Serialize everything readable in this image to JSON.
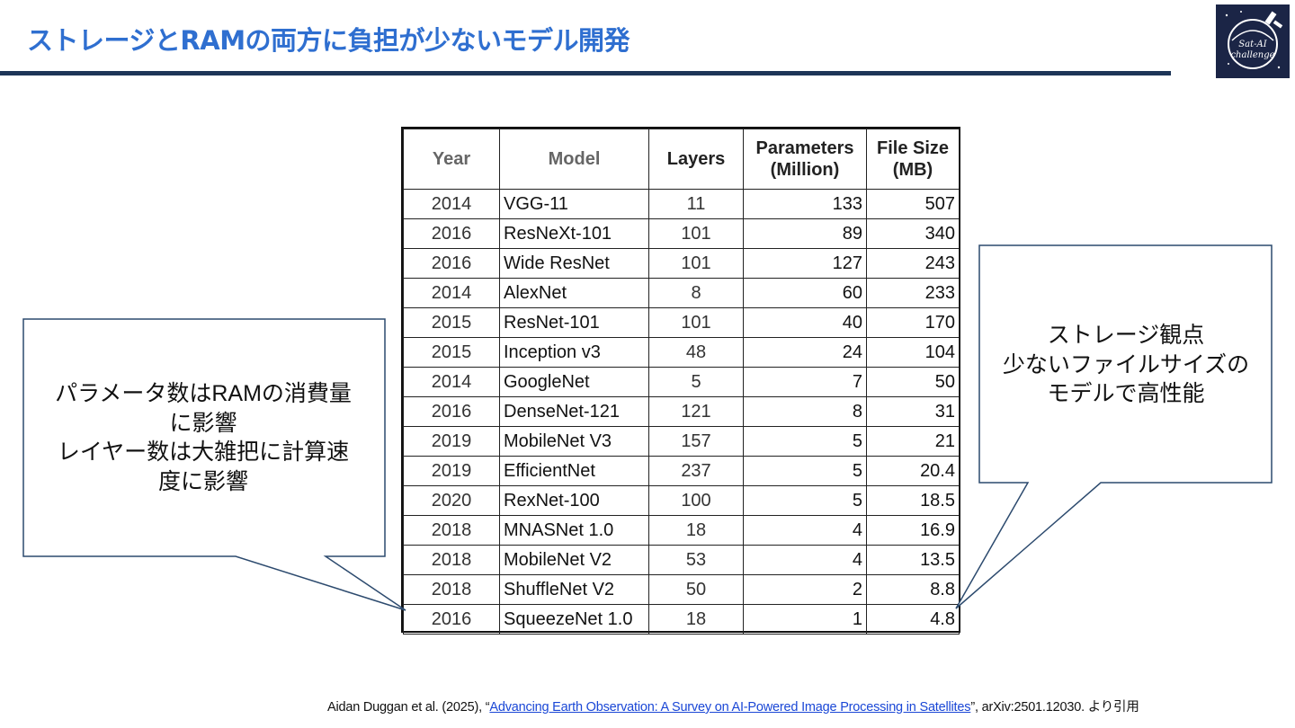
{
  "slide": {
    "title": "ストレージとRAMの両方に負担が少ないモデル開発",
    "logo_text": "Sat-AI challenge"
  },
  "table": {
    "headers": [
      "Year",
      "Model",
      "Layers",
      "Parameters (Million)",
      "File Size (MB)"
    ],
    "header_lines": {
      "params": [
        "Parameters",
        "(Million)"
      ],
      "size": [
        "File Size",
        "(MB)"
      ]
    },
    "rows": [
      [
        "2014",
        "VGG-11",
        "11",
        "133",
        "507"
      ],
      [
        "2016",
        "ResNeXt-101",
        "101",
        "89",
        "340"
      ],
      [
        "2016",
        "Wide ResNet",
        "101",
        "127",
        "243"
      ],
      [
        "2014",
        "AlexNet",
        "8",
        "60",
        "233"
      ],
      [
        "2015",
        "ResNet-101",
        "101",
        "40",
        "170"
      ],
      [
        "2015",
        "Inception v3",
        "48",
        "24",
        "104"
      ],
      [
        "2014",
        "GoogleNet",
        "5",
        "7",
        "50"
      ],
      [
        "2016",
        "DenseNet-121",
        "121",
        "8",
        "31"
      ],
      [
        "2019",
        "MobileNet V3",
        "157",
        "5",
        "21"
      ],
      [
        "2019",
        "EfficientNet",
        "237",
        "5",
        "20.4"
      ],
      [
        "2020",
        "RexNet-100",
        "100",
        "5",
        "18.5"
      ],
      [
        "2018",
        "MNASNet 1.0",
        "18",
        "4",
        "16.9"
      ],
      [
        "2018",
        "MobileNet V2",
        "53",
        "4",
        "13.5"
      ],
      [
        "2018",
        "ShuffleNet V2",
        "50",
        "2",
        "8.8"
      ],
      [
        "2016",
        "SqueezeNet 1.0",
        "18",
        "1",
        "4.8"
      ]
    ]
  },
  "callouts": {
    "left": [
      "パラメータ数はRAMの消費量",
      "に影響",
      "レイヤー数は大雑把に計算速",
      "度に影響"
    ],
    "right": [
      "ストレージ観点",
      "少ないファイルサイズの",
      "モデルで高性能"
    ]
  },
  "citation": {
    "prefix": "Aidan Duggan et al. (2025), “",
    "link_text": "Advancing Earth Observation: A Survey on AI-Powered Image Processing in Satellites",
    "suffix": "”, arXiv:2501.12030. より引用"
  },
  "colors": {
    "title": "#2f6fd0",
    "rule": "#1d3557",
    "callout_border": "#2c4a6e",
    "link": "#1a47d6"
  }
}
